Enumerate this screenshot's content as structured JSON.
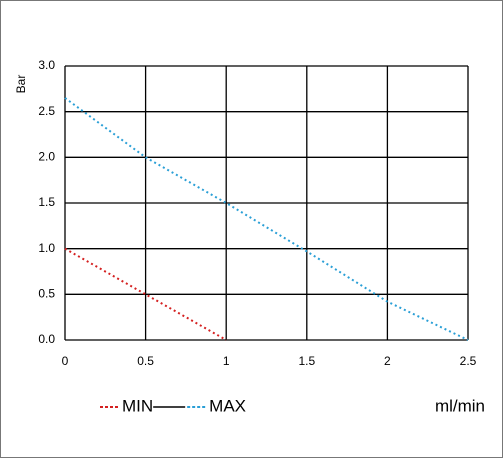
{
  "chart_data": {
    "type": "line",
    "x_label": "ml/min",
    "y_label": "Bar",
    "xlim": [
      0,
      2.5
    ],
    "ylim": [
      0,
      3
    ],
    "xticks": [
      0,
      0.5,
      1,
      1.5,
      2,
      2.5
    ],
    "yticks": [
      {
        "value": 0,
        "label": "0.0"
      },
      {
        "value": 0.5,
        "label": "0.5"
      },
      {
        "value": 1,
        "label": "1.0"
      },
      {
        "value": 1.5,
        "label": "1.5"
      },
      {
        "value": 2,
        "label": "2.0"
      },
      {
        "value": 2.5,
        "label": "2.5"
      },
      {
        "value": 3,
        "label": "3.0"
      }
    ],
    "grid": true,
    "series": [
      {
        "name": "MIN",
        "color": "#d42020",
        "x": [
          0,
          0.5,
          1
        ],
        "values": [
          1.0,
          0.5,
          0
        ]
      },
      {
        "name": "MAX",
        "color": "#2a9fd6",
        "x": [
          0,
          0.5,
          1,
          1.5,
          2,
          2.5
        ],
        "values": [
          2.65,
          2.0,
          1.5,
          0.97,
          0.42,
          0
        ]
      }
    ]
  }
}
